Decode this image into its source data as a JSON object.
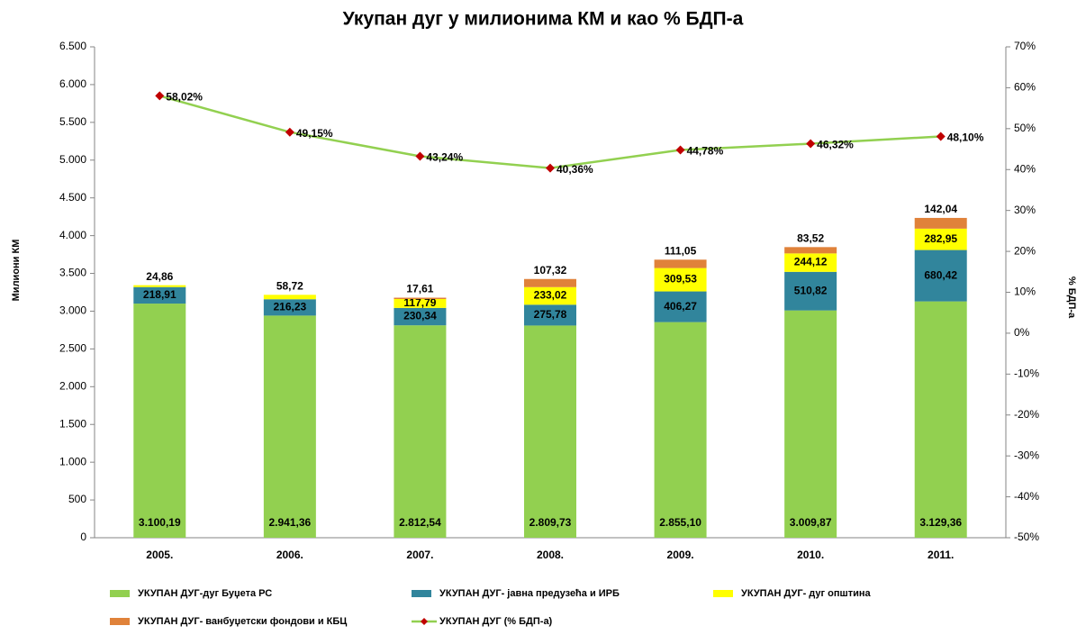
{
  "chart_data": {
    "type": "bar",
    "stacked": true,
    "title": "Укупан дуг у милионима КМ и као % БДП-а",
    "y_label": "Милиони КМ",
    "y2_label": "% БДП-а",
    "categories": [
      "2005.",
      "2006.",
      "2007.",
      "2008.",
      "2009.",
      "2010.",
      "2011."
    ],
    "series": [
      {
        "name": "УКУПАН ДУГ-дуг Буџета РС",
        "color": "#92d050",
        "values": [
          3100.19,
          2941.36,
          2812.54,
          2809.73,
          2855.1,
          3009.87,
          3129.36
        ],
        "value_labels": [
          "3.100,19",
          "2.941,36",
          "2.812,54",
          "2.809,73",
          "2.855,10",
          "3.009,87",
          "3.129,36"
        ]
      },
      {
        "name": "УКУПАН ДУГ- јавна предузећа и ИРБ",
        "color": "#31859c",
        "values": [
          218.91,
          216.23,
          230.34,
          275.78,
          406.27,
          510.82,
          680.42
        ],
        "value_labels": [
          "218,91",
          "216,23",
          "230,34",
          "275,78",
          "406,27",
          "510,82",
          "680,42"
        ]
      },
      {
        "name": "УКУПАН ДУГ- дуг општина",
        "color": "#ffff00",
        "values": [
          24.86,
          58.72,
          117.79,
          233.02,
          309.53,
          244.12,
          282.95
        ],
        "value_labels": [
          "24,86",
          "58,72",
          "117,79",
          "233,02",
          "309,53",
          "244,12",
          "282,95"
        ]
      },
      {
        "name": "УКУПАН ДУГ- ванбуџетски фондови и КБЦ",
        "color": "#e0823a",
        "values": [
          null,
          null,
          17.61,
          107.32,
          111.05,
          83.52,
          142.04
        ],
        "value_labels": [
          null,
          null,
          "17,61",
          "107,32",
          "111,05",
          "83,52",
          "142,04"
        ]
      },
      {
        "name": "УКУПАН ДУГ (% БДП-а)",
        "type": "line",
        "axis": "y2",
        "color": "#92d050",
        "marker_color": "#c00000",
        "values": [
          58.02,
          49.15,
          43.24,
          40.36,
          44.78,
          46.32,
          48.1
        ],
        "value_labels": [
          "58,02%",
          "49,15%",
          "43,24%",
          "40,36%",
          "44,78%",
          "46,32%",
          "48,10%"
        ]
      }
    ],
    "ylim": [
      0,
      6500
    ],
    "yticks": [
      0,
      500,
      {
        "value": 1000,
        "label": "1.000"
      },
      {
        "value": 1500,
        "label": "1.500"
      },
      {
        "value": 2000,
        "label": "2.000"
      },
      {
        "value": 2500,
        "label": "2.500"
      },
      {
        "value": 3000,
        "label": "3.000"
      },
      {
        "value": 3500,
        "label": "3.500"
      },
      {
        "value": 4000,
        "label": "4.000"
      },
      {
        "value": 4500,
        "label": "4.500"
      },
      {
        "value": 5000,
        "label": "5.000"
      },
      {
        "value": 5500,
        "label": "5.500"
      },
      {
        "value": 6000,
        "label": "6.000"
      },
      {
        "value": 6500,
        "label": "6.500"
      }
    ],
    "y2lim": [
      -50,
      70
    ],
    "y2ticks": [
      {
        "value": -50,
        "label": "-50%"
      },
      {
        "value": -40,
        "label": "-40%"
      },
      {
        "value": -30,
        "label": "-30%"
      },
      {
        "value": -20,
        "label": "-20%"
      },
      {
        "value": -10,
        "label": "-10%"
      },
      {
        "value": 0,
        "label": "0%"
      },
      {
        "value": 10,
        "label": "10%"
      },
      {
        "value": 20,
        "label": "20%"
      },
      {
        "value": 30,
        "label": "30%"
      },
      {
        "value": 40,
        "label": "40%"
      },
      {
        "value": 50,
        "label": "50%"
      },
      {
        "value": 60,
        "label": "60%"
      },
      {
        "value": 70,
        "label": "70%"
      }
    ],
    "grid": false,
    "legend": "bottom"
  }
}
